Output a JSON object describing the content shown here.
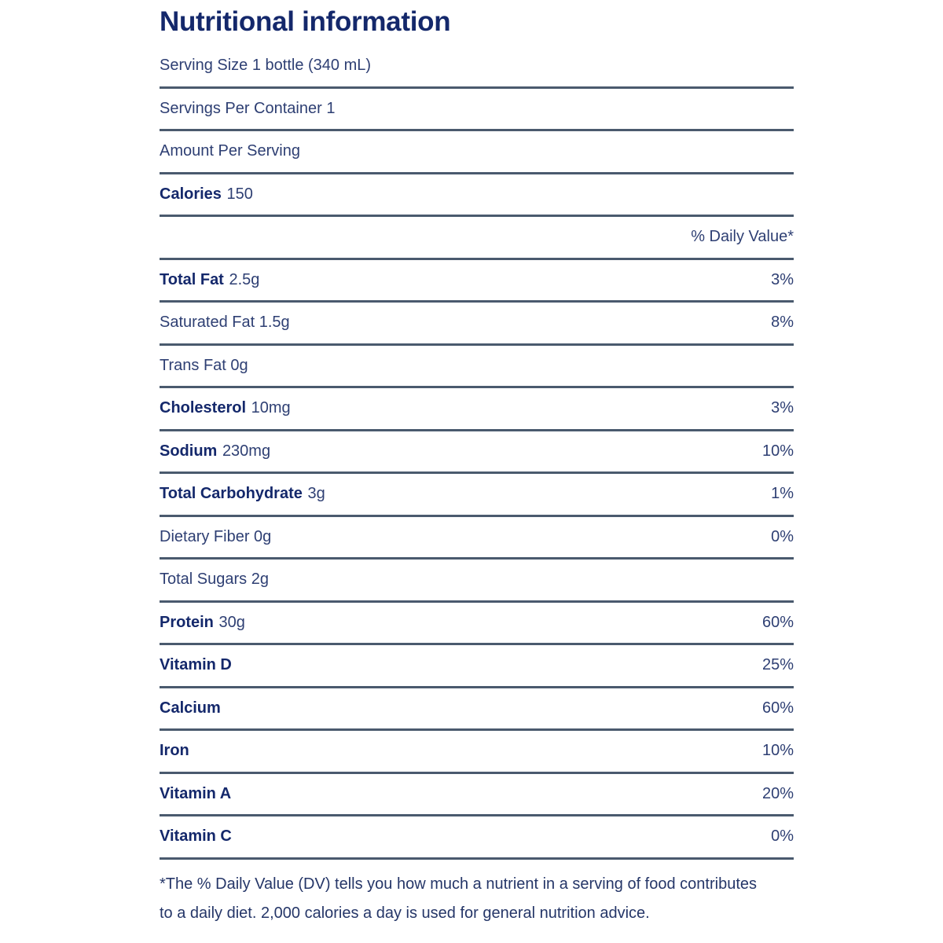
{
  "label": {
    "title": "Nutritional information",
    "colors": {
      "text_bold": "#14286b",
      "text_regular": "#2e3f73",
      "rule": "#4a5a6e",
      "background": "#ffffff"
    }
  },
  "table": {
    "rows": [
      {
        "bold": "",
        "regular": "Serving Size 1 bottle (340 mL)",
        "dv": ""
      },
      {
        "bold": "",
        "regular": "Servings Per Container 1",
        "dv": ""
      },
      {
        "bold": "",
        "regular": "Amount Per Serving",
        "dv": ""
      },
      {
        "bold": "Calories",
        "regular": "150",
        "dv": ""
      },
      {
        "bold": "",
        "regular": "",
        "dv": "% Daily Value*"
      },
      {
        "bold": "Total Fat",
        "regular": "2.5g",
        "dv": "3%"
      },
      {
        "bold": "",
        "regular": "Saturated Fat 1.5g",
        "dv": "8%"
      },
      {
        "bold": "",
        "regular": "Trans Fat 0g",
        "dv": ""
      },
      {
        "bold": "Cholesterol",
        "regular": "10mg",
        "dv": "3%"
      },
      {
        "bold": "Sodium",
        "regular": "230mg",
        "dv": "10%"
      },
      {
        "bold": "Total Carbohydrate",
        "regular": "3g",
        "dv": "1%"
      },
      {
        "bold": "",
        "regular": "Dietary Fiber 0g",
        "dv": "0%"
      },
      {
        "bold": "",
        "regular": "Total Sugars 2g",
        "dv": ""
      },
      {
        "bold": "Protein",
        "regular": "30g",
        "dv": "60%"
      },
      {
        "bold": "Vitamin D",
        "regular": "",
        "dv": "25%"
      },
      {
        "bold": "Calcium",
        "regular": "",
        "dv": "60%"
      },
      {
        "bold": "Iron",
        "regular": "",
        "dv": "10%"
      },
      {
        "bold": "Vitamin A",
        "regular": "",
        "dv": "20%"
      },
      {
        "bold": "Vitamin C",
        "regular": "",
        "dv": "0%"
      }
    ]
  },
  "footnote": {
    "text": "*The % Daily Value (DV) tells you how much a nutrient in a serving of food contributes to a daily diet. 2,000 calories a day is used for general nutrition advice."
  }
}
